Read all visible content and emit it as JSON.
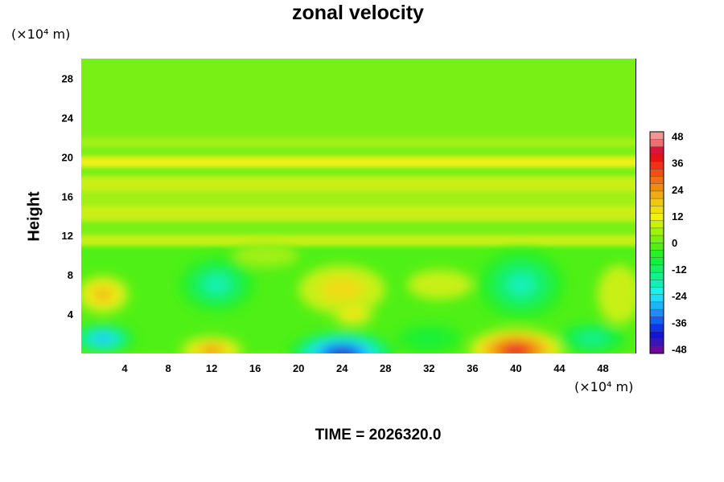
{
  "chart_data": {
    "type": "heatmap",
    "title": "zonal velocity",
    "ylabel": "Height",
    "x_unit_label": "(×10⁴ m)",
    "y_unit_label": "(×10⁴ m)",
    "x_ticks": [
      4,
      8,
      12,
      16,
      20,
      24,
      28,
      32,
      36,
      40,
      44,
      48
    ],
    "y_ticks": [
      4,
      8,
      12,
      16,
      20,
      24,
      28
    ],
    "xlim": [
      0,
      51
    ],
    "ylim": [
      0,
      30
    ],
    "colorbar": {
      "ticks": [
        48,
        36,
        24,
        12,
        0,
        -12,
        -24,
        -36,
        -48
      ],
      "range": [
        -50,
        50
      ],
      "colors": [
        "#6a0a9a",
        "#3a14b8",
        "#1414d2",
        "#1432e6",
        "#1460f0",
        "#1e8cf8",
        "#1eb4fa",
        "#1edcfa",
        "#1ef0e6",
        "#14f0b4",
        "#14f08c",
        "#14f064",
        "#14f03c",
        "#28f028",
        "#50f014",
        "#78f014",
        "#a0f014",
        "#c8f014",
        "#f0f014",
        "#f0dc14",
        "#f0c814",
        "#f0aa14",
        "#f08c14",
        "#f06e14",
        "#f05014",
        "#f03214",
        "#e61414",
        "#dc143c",
        "#f06e6e",
        "#f09696"
      ]
    },
    "grid": false,
    "legend": "colorbar-right",
    "bands": [
      {
        "y": [
          0,
          11
        ],
        "value": -2
      },
      {
        "y": [
          11,
          12
        ],
        "value": 8
      },
      {
        "y": [
          12,
          13.5
        ],
        "value": 2
      },
      {
        "y": [
          13.5,
          15
        ],
        "value": 9
      },
      {
        "y": [
          15,
          16.5
        ],
        "value": 4
      },
      {
        "y": [
          16.5,
          18
        ],
        "value": 8
      },
      {
        "y": [
          18,
          19
        ],
        "value": 3
      },
      {
        "y": [
          19,
          20
        ],
        "value": 10
      },
      {
        "y": [
          20,
          21
        ],
        "value": 1
      },
      {
        "y": [
          21,
          22
        ],
        "value": 6
      },
      {
        "y": [
          22,
          23.5
        ],
        "value": 2
      },
      {
        "y": [
          23.5,
          30
        ],
        "value": 0
      }
    ],
    "features": [
      {
        "x": 2,
        "y": 6,
        "rx": 2.5,
        "ry": 2,
        "value": 22
      },
      {
        "x": 12.5,
        "y": 7,
        "rx": 3.5,
        "ry": 2.8,
        "value": -18
      },
      {
        "x": 24,
        "y": 6.5,
        "rx": 4,
        "ry": 2.5,
        "value": 14
      },
      {
        "x": 25,
        "y": 4,
        "rx": 2,
        "ry": 1.2,
        "value": 16
      },
      {
        "x": 40.5,
        "y": 7,
        "rx": 4,
        "ry": 3.5,
        "value": -20
      },
      {
        "x": 49.5,
        "y": 6,
        "rx": 2,
        "ry": 3,
        "value": 8
      },
      {
        "x": 33,
        "y": 7,
        "rx": 3,
        "ry": 1.5,
        "value": 8
      },
      {
        "x": 17,
        "y": 10,
        "rx": 3,
        "ry": 1.2,
        "value": 6
      },
      {
        "x": 2,
        "y": 1.5,
        "rx": 3,
        "ry": 1.5,
        "value": -30
      },
      {
        "x": 12,
        "y": 0.3,
        "rx": 3,
        "ry": 1.5,
        "value": 26
      },
      {
        "x": 24,
        "y": 0,
        "rx": 5,
        "ry": 2.3,
        "value": -44
      },
      {
        "x": 40,
        "y": 0.3,
        "rx": 4.5,
        "ry": 2.3,
        "value": 40
      },
      {
        "x": 32,
        "y": 1.5,
        "rx": 3,
        "ry": 1.5,
        "value": -10
      },
      {
        "x": 47,
        "y": 1.5,
        "rx": 3,
        "ry": 1.5,
        "value": -14
      }
    ],
    "time_label": "TIME = ",
    "time_value": "2026320.0"
  }
}
